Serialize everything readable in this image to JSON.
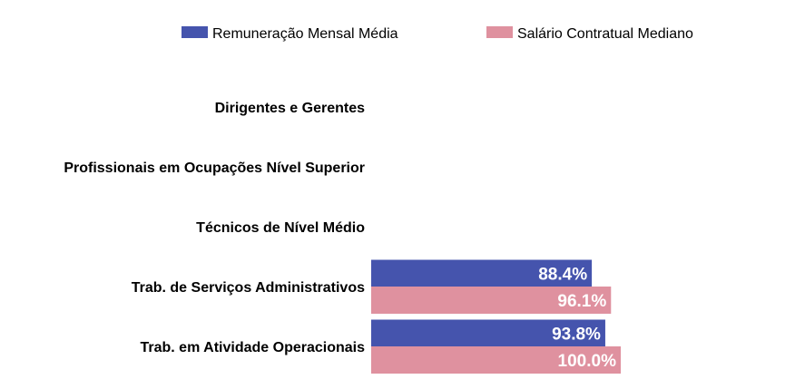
{
  "chart_data": {
    "type": "bar",
    "orientation": "horizontal",
    "categories": [
      "Dirigentes e Gerentes",
      "Profissionais em Ocupações Nível Superior",
      "Técnicos de Nível Médio",
      "Trab. de Serviços Administrativos",
      "Trab. em Atividade Operacionais"
    ],
    "series": [
      {
        "name": "Remuneração Mensal Média",
        "color": "#4554ad",
        "values": [
          null,
          null,
          null,
          88.4,
          93.8
        ],
        "labels": [
          "",
          "",
          "",
          "88.4%",
          "93.8%"
        ]
      },
      {
        "name": "Salário Contratual Mediano",
        "color": "#df919f",
        "values": [
          null,
          null,
          null,
          96.1,
          100.0
        ],
        "labels": [
          "",
          "",
          "",
          "96.1%",
          "100.0%"
        ]
      }
    ],
    "xlim": [
      0,
      100
    ],
    "legend_position": "top",
    "grid": false
  }
}
